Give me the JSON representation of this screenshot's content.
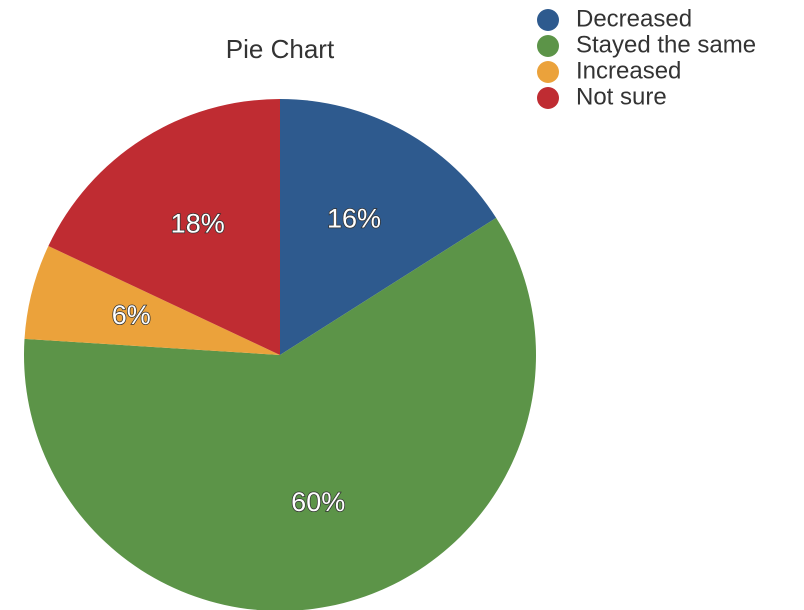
{
  "chart_data": {
    "type": "pie",
    "title": "Pie Chart",
    "categories": [
      "Decreased",
      "Stayed the same",
      "Increased",
      "Not sure"
    ],
    "values": [
      16,
      60,
      6,
      18
    ],
    "labels": [
      "16%",
      "60%",
      "6%",
      "18%"
    ],
    "colors": [
      "#2e5a8e",
      "#5c9448",
      "#eba23b",
      "#bf2c32"
    ],
    "legend_position": "top-right"
  }
}
